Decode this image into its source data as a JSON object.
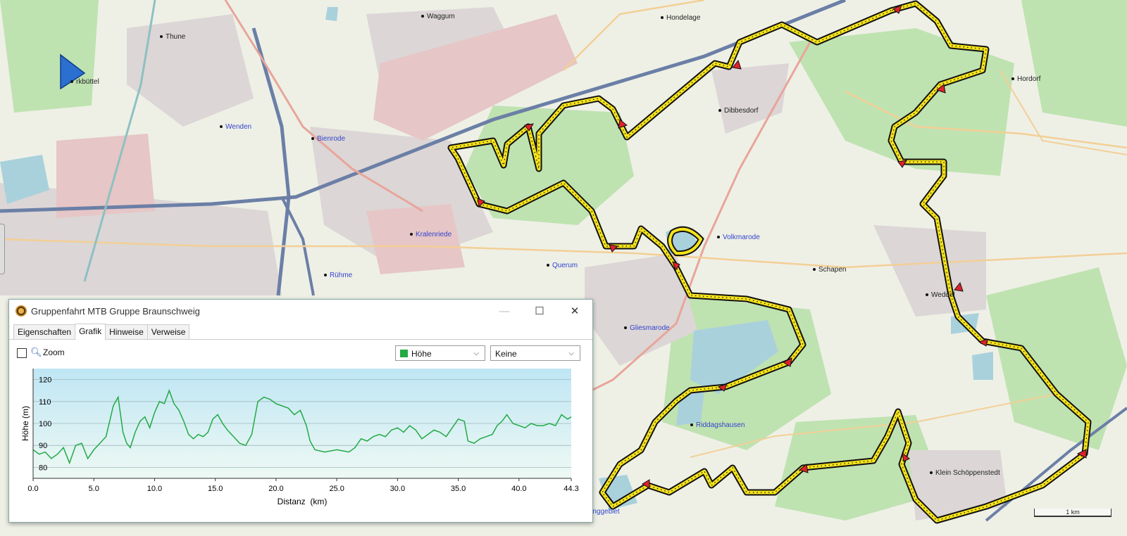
{
  "map": {
    "places": [
      {
        "name": "Waggum",
        "blue": false
      },
      {
        "name": "Thune",
        "blue": false
      },
      {
        "name": "Hondelage",
        "blue": false
      },
      {
        "name": "rkbüttel",
        "blue": false
      },
      {
        "name": "Hordorf",
        "blue": false
      },
      {
        "name": "Dibbesdorf",
        "blue": false
      },
      {
        "name": "Wenden",
        "blue": true
      },
      {
        "name": "Bienrode",
        "blue": true
      },
      {
        "name": "Kralenriede",
        "blue": true
      },
      {
        "name": "Volkmarode",
        "blue": true
      },
      {
        "name": "Rühme",
        "blue": true
      },
      {
        "name": "Querum",
        "blue": true
      },
      {
        "name": "Schapen",
        "blue": false
      },
      {
        "name": "Weddel",
        "blue": false
      },
      {
        "name": "Gliesmarode",
        "blue": true
      },
      {
        "name": "Riddagshausen",
        "blue": true
      },
      {
        "name": "Klein Schöppenstedt",
        "blue": false
      },
      {
        "name": "Östliches Ringgebiet",
        "blue": true
      }
    ],
    "scale_label": "1 km",
    "route_color": "#f5e31a"
  },
  "window": {
    "title": "Gruppenfahrt MTB Gruppe Braunschweig",
    "minimize_glyph": "—",
    "maximize_glyph": "☐",
    "close_glyph": "✕",
    "tabs": [
      {
        "label": "Eigenschaften",
        "active": false
      },
      {
        "label": "Grafik",
        "active": true
      },
      {
        "label": "Hinweise",
        "active": false
      },
      {
        "label": "Verweise",
        "active": false
      }
    ],
    "zoom_label": "Zoom",
    "series_select": "Höhe",
    "overlay_select": "Keine"
  },
  "chart_data": {
    "type": "area",
    "xlabel": "Distanz  (km)",
    "ylabel": "Höhe (m)",
    "xlim": [
      0,
      44.3
    ],
    "ylim": [
      75,
      125
    ],
    "xticks": [
      "0.0",
      "5.0",
      "10.0",
      "15.0",
      "20.0",
      "25.0",
      "30.0",
      "35.0",
      "40.0",
      "44.3"
    ],
    "yticks": [
      "80",
      "90",
      "100",
      "110",
      "120"
    ],
    "series": [
      {
        "color": "#22aa44",
        "points": [
          [
            0,
            88
          ],
          [
            0.5,
            86
          ],
          [
            1,
            87
          ],
          [
            1.5,
            84
          ],
          [
            2,
            86
          ],
          [
            2.5,
            89
          ],
          [
            3,
            82
          ],
          [
            3.5,
            90
          ],
          [
            4,
            91
          ],
          [
            4.5,
            84
          ],
          [
            5,
            88
          ],
          [
            5.5,
            91
          ],
          [
            6,
            94
          ],
          [
            6.3,
            101
          ],
          [
            6.6,
            108
          ],
          [
            7,
            112
          ],
          [
            7.4,
            96
          ],
          [
            7.7,
            91
          ],
          [
            8,
            89
          ],
          [
            8.4,
            96
          ],
          [
            8.8,
            101
          ],
          [
            9.2,
            103
          ],
          [
            9.6,
            98
          ],
          [
            10,
            105
          ],
          [
            10.4,
            110
          ],
          [
            10.8,
            109
          ],
          [
            11.2,
            115
          ],
          [
            11.6,
            109
          ],
          [
            12,
            106
          ],
          [
            12.4,
            101
          ],
          [
            12.8,
            95
          ],
          [
            13.2,
            93
          ],
          [
            13.6,
            95
          ],
          [
            14,
            94
          ],
          [
            14.4,
            96
          ],
          [
            14.8,
            102
          ],
          [
            15.2,
            104
          ],
          [
            15.6,
            100
          ],
          [
            16,
            97
          ],
          [
            16.5,
            94
          ],
          [
            17,
            91
          ],
          [
            17.5,
            90
          ],
          [
            18,
            95
          ],
          [
            18.5,
            110
          ],
          [
            19,
            112
          ],
          [
            19.5,
            111
          ],
          [
            20,
            109
          ],
          [
            20.5,
            108
          ],
          [
            21,
            107
          ],
          [
            21.5,
            104
          ],
          [
            22,
            106
          ],
          [
            22.5,
            99
          ],
          [
            22.8,
            92
          ],
          [
            23.2,
            88
          ],
          [
            24,
            87
          ],
          [
            25,
            88
          ],
          [
            26,
            87
          ],
          [
            26.5,
            89
          ],
          [
            27,
            93
          ],
          [
            27.5,
            92
          ],
          [
            28,
            94
          ],
          [
            28.5,
            95
          ],
          [
            29,
            94
          ],
          [
            29.5,
            97
          ],
          [
            30,
            98
          ],
          [
            30.5,
            96
          ],
          [
            31,
            99
          ],
          [
            31.5,
            97
          ],
          [
            32,
            93
          ],
          [
            32.5,
            95
          ],
          [
            33,
            97
          ],
          [
            33.5,
            96
          ],
          [
            34,
            94
          ],
          [
            34.5,
            98
          ],
          [
            35,
            102
          ],
          [
            35.5,
            101
          ],
          [
            35.8,
            92
          ],
          [
            36.3,
            91
          ],
          [
            36.8,
            93
          ],
          [
            37.3,
            94
          ],
          [
            37.8,
            95
          ],
          [
            38.2,
            99
          ],
          [
            38.6,
            101
          ],
          [
            39,
            104
          ],
          [
            39.5,
            100
          ],
          [
            40,
            99
          ],
          [
            40.5,
            98
          ],
          [
            41,
            100
          ],
          [
            41.5,
            99
          ],
          [
            42,
            99
          ],
          [
            42.5,
            100
          ],
          [
            43,
            99
          ],
          [
            43.5,
            104
          ],
          [
            44,
            102
          ],
          [
            44.3,
            103
          ]
        ]
      }
    ]
  }
}
